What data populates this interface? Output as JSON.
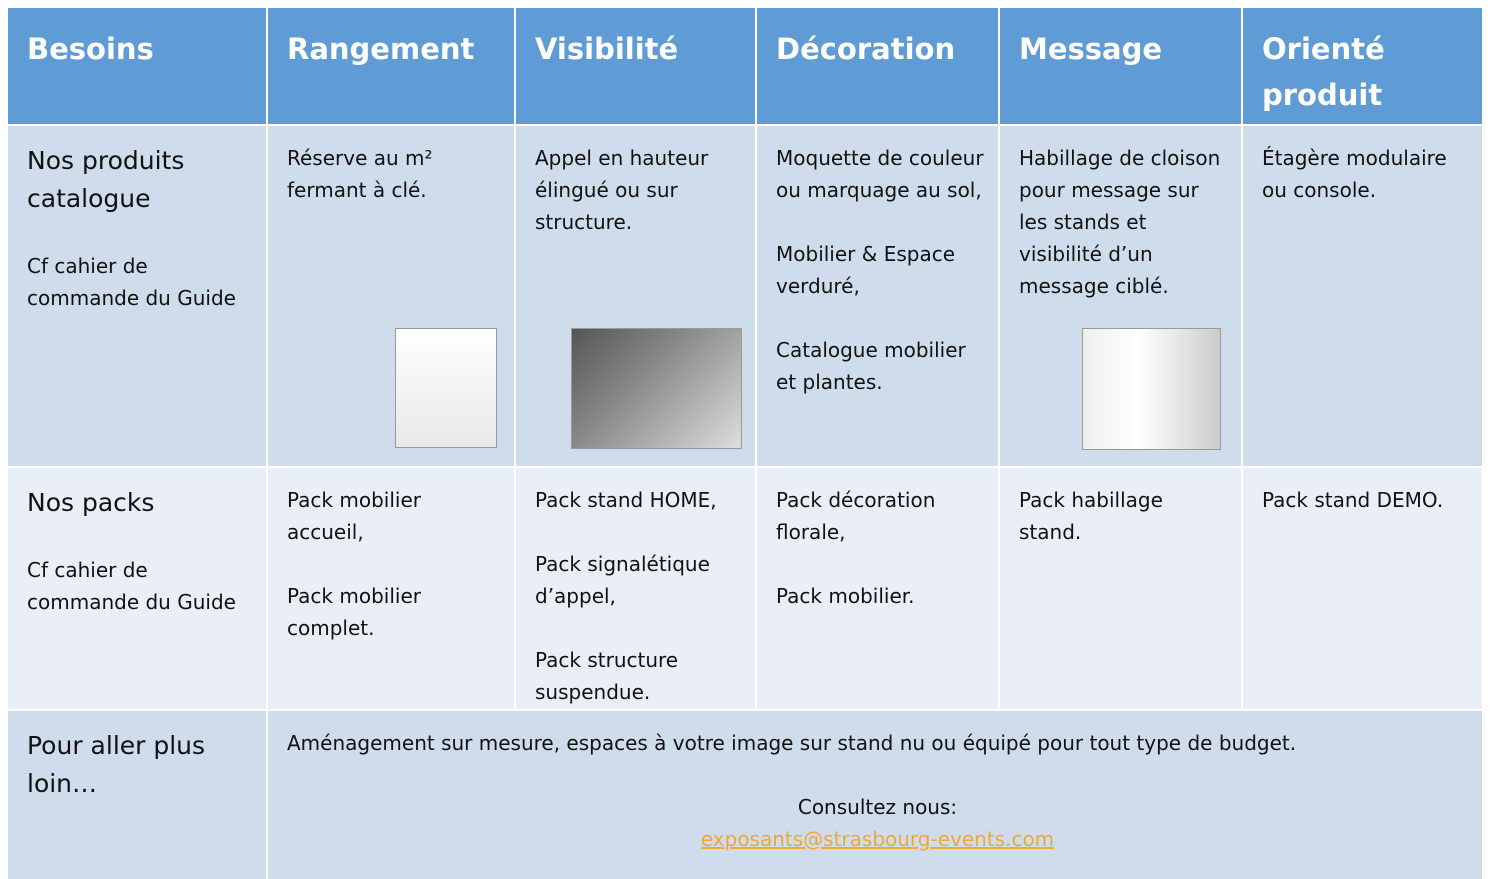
{
  "table": {
    "header": [
      "Besoins",
      "Rangement",
      "Visibilité",
      "Décoration",
      "Message",
      "Orienté produit"
    ],
    "rows": [
      {
        "label": "Nos produits catalogue",
        "note": "Cf cahier de commande du Guide",
        "cells": [
          [
            "Réserve au m² fermant à clé."
          ],
          [
            "Appel en hauteur élingué ou sur structure."
          ],
          [
            "Moquette de couleur ou marquage au sol,",
            "Mobilier & Espace verduré,",
            "Catalogue mobilier et plantes."
          ],
          [
            "Habillage de cloison pour message sur les stands et visibilité d’un message ciblé."
          ],
          [
            "Étagère modulaire ou console."
          ]
        ]
      },
      {
        "label": "Nos packs",
        "note": "Cf cahier de commande du Guide",
        "cells": [
          [
            "Pack mobilier accueil,",
            "Pack  mobilier complet."
          ],
          [
            "Pack stand HOME,",
            "Pack signalétique d’appel,",
            "Pack structure suspendue."
          ],
          [
            "Pack décoration florale,",
            "Pack mobilier."
          ],
          [
            "Pack habillage stand."
          ],
          [
            "Pack stand DEMO."
          ]
        ]
      }
    ],
    "footer": {
      "label": "Pour aller plus loin…",
      "text": "Aménagement sur mesure, espaces à votre image sur stand nu ou équipé pour tout type de budget.",
      "contact": "Consultez nous:",
      "email": "exposants@strasbourg-events.com"
    }
  }
}
